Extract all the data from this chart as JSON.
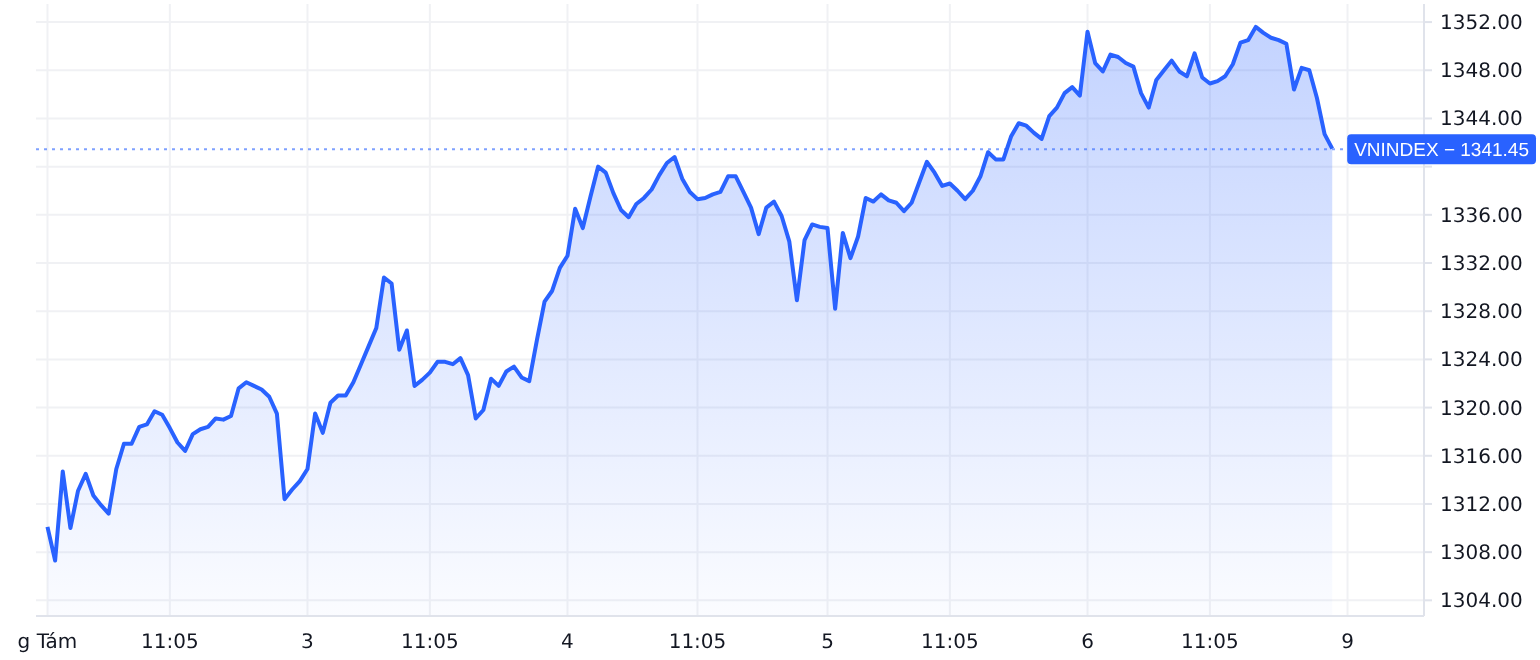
{
  "chart_data": {
    "type": "area",
    "categories": [
      "g Tám",
      null,
      null,
      null,
      null,
      null,
      null,
      null,
      null,
      null,
      null,
      null,
      null,
      null,
      null,
      null,
      "11:05",
      null,
      null,
      null,
      null,
      null,
      null,
      null,
      null,
      null,
      null,
      null,
      null,
      null,
      null,
      null,
      null,
      null,
      "3",
      null,
      null,
      null,
      null,
      null,
      null,
      null,
      null,
      null,
      null,
      null,
      null,
      null,
      null,
      null,
      "11:05",
      null,
      null,
      null,
      null,
      null,
      null,
      null,
      null,
      null,
      null,
      null,
      null,
      null,
      null,
      null,
      null,
      null,
      "4",
      null,
      null,
      null,
      null,
      null,
      null,
      null,
      null,
      null,
      null,
      null,
      null,
      null,
      null,
      null,
      null,
      "11:05",
      null,
      null,
      null,
      null,
      null,
      null,
      null,
      null,
      null,
      null,
      null,
      null,
      null,
      null,
      null,
      null,
      "5",
      null,
      null,
      null,
      null,
      null,
      null,
      null,
      null,
      null,
      null,
      null,
      null,
      null,
      null,
      null,
      "11:05",
      null,
      null,
      null,
      null,
      null,
      null,
      null,
      null,
      null,
      null,
      null,
      null,
      null,
      null,
      null,
      null,
      null,
      "6",
      null,
      null,
      null,
      null,
      null,
      null,
      null,
      null,
      null,
      null,
      null,
      null,
      null,
      null,
      null,
      "11:05",
      null,
      null,
      null,
      null,
      null,
      null,
      null,
      null,
      null,
      null,
      null,
      null,
      null,
      null,
      null,
      null,
      null,
      "9"
    ],
    "series": [
      {
        "color": "#2962ff",
        "values": [
          1310.1,
          1307.3,
          1314.7,
          1310.0,
          1313.1,
          1314.5,
          1312.7,
          1311.9,
          1311.2,
          1314.9,
          1317.0,
          1317.0,
          1318.4,
          1318.6,
          1319.7,
          1319.4,
          1318.3,
          1317.1,
          1316.4,
          1317.8,
          1318.2,
          1318.4,
          1319.1,
          1319.0,
          1319.3,
          1321.6,
          1322.1,
          1321.8,
          1321.5,
          1320.9,
          1319.5,
          1312.4,
          1313.2,
          1313.9,
          1314.9,
          1319.5,
          1317.9,
          1320.4,
          1321.0,
          1321.0,
          1322.1,
          1323.6,
          1325.1,
          1326.6,
          1330.8,
          1330.3,
          1324.8,
          1326.4,
          1321.8,
          1322.3,
          1322.9,
          1323.8,
          1323.8,
          1323.6,
          1324.1,
          1322.7,
          1319.1,
          1319.8,
          1322.4,
          1321.8,
          1323.0,
          1323.4,
          1322.5,
          1322.2,
          1325.6,
          1328.8,
          1329.7,
          1331.6,
          1332.6,
          1336.5,
          1334.9,
          1337.5,
          1340.0,
          1339.5,
          1337.8,
          1336.4,
          1335.8,
          1336.9,
          1337.4,
          1338.1,
          1339.3,
          1340.3,
          1340.8,
          1339.0,
          1337.9,
          1337.3,
          1337.4,
          1337.7,
          1337.9,
          1339.2,
          1339.2,
          1337.9,
          1336.6,
          1334.4,
          1336.6,
          1337.1,
          1335.9,
          1333.8,
          1328.9,
          1333.9,
          1335.2,
          1335.0,
          1334.9,
          1328.2,
          1334.5,
          1332.4,
          1334.2,
          1337.4,
          1337.1,
          1337.7,
          1337.2,
          1337.0,
          1336.3,
          1337.0,
          1338.7,
          1340.4,
          1339.5,
          1338.4,
          1338.6,
          1338.0,
          1337.3,
          1338.0,
          1339.2,
          1341.2,
          1340.6,
          1340.6,
          1342.5,
          1343.6,
          1343.4,
          1342.8,
          1342.3,
          1344.2,
          1344.9,
          1346.1,
          1346.6,
          1345.9,
          1351.2,
          1348.6,
          1347.9,
          1349.3,
          1349.1,
          1348.6,
          1348.3,
          1346.1,
          1344.9,
          1347.2,
          1348.0,
          1348.8,
          1347.9,
          1347.5,
          1349.4,
          1347.4,
          1346.9,
          1347.1,
          1347.5,
          1348.5,
          1350.3,
          1350.5,
          1351.6,
          1351.1,
          1350.7,
          1350.5,
          1350.2,
          1346.4,
          1348.2,
          1348.0,
          1345.7,
          1342.7,
          1341.5,
          null,
          null
        ]
      }
    ],
    "ylim": [
      1302.7,
      1353.5
    ],
    "yticks": [
      {
        "value": 1304,
        "label": "1304.00"
      },
      {
        "value": 1308,
        "label": "1308.00"
      },
      {
        "value": 1312,
        "label": "1312.00"
      },
      {
        "value": 1316,
        "label": "1316.00"
      },
      {
        "value": 1320,
        "label": "1320.00"
      },
      {
        "value": 1324,
        "label": "1324.00"
      },
      {
        "value": 1328,
        "label": "1328.00"
      },
      {
        "value": 1332,
        "label": "1332.00"
      },
      {
        "value": 1336,
        "label": "1336.00"
      },
      {
        "value": 1340,
        "label": null
      },
      {
        "value": 1344,
        "label": "1344.00"
      },
      {
        "value": 1348,
        "label": "1348.00"
      },
      {
        "value": 1352,
        "label": "1352.00"
      }
    ],
    "ref_lines": [
      {
        "axis": "y",
        "value": 1341.45,
        "label": "VNINDEX − 1341.45",
        "color": "#2962ff",
        "line_style": "dotted"
      }
    ],
    "grid": true,
    "line_style": "solid",
    "marker": "none"
  }
}
